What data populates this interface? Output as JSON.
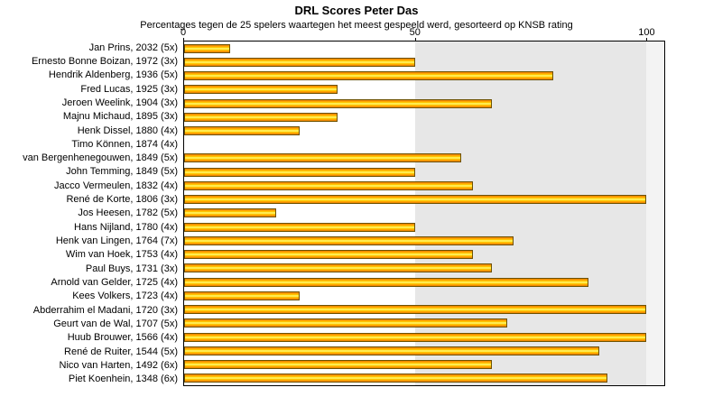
{
  "title": "DRL Scores Peter Das",
  "subtitle": "Percentages tegen de 25 spelers waartegen het meest gespeeld werd, gesorteerd op KNSB rating",
  "chart_data": {
    "type": "bar",
    "orientation": "horizontal",
    "title": "DRL Scores Peter Das",
    "subtitle": "Percentages tegen de 25 spelers waartegen het meest gespeeld werd, gesorteerd op KNSB rating",
    "xlabel": "",
    "ylabel": "",
    "xlim": [
      0,
      104
    ],
    "x_ticks": [
      0,
      50,
      100
    ],
    "shaded_band": [
      50,
      100
    ],
    "grid": false,
    "legend": "none",
    "categories": [
      "Jan Prins, 2032 (5x)",
      "Ernesto Bonne Boizan, 1972 (3x)",
      "Hendrik Aldenberg, 1936 (5x)",
      "Fred Lucas, 1925 (3x)",
      "Jeroen Weelink, 1904 (3x)",
      "Majnu Michaud, 1895 (3x)",
      "Henk Dissel, 1880 (4x)",
      "Timo Können, 1874 (4x)",
      "van Bergenhenegouwen, 1849 (5x)",
      "John Temming, 1849 (5x)",
      "Jacco Vermeulen, 1832 (4x)",
      "René de Korte, 1806 (3x)",
      "Jos Heesen, 1782 (5x)",
      "Hans Nijland, 1780 (4x)",
      "Henk van Lingen, 1764 (7x)",
      "Wim van Hoek, 1753 (4x)",
      "Paul Buys, 1731 (3x)",
      "Arnold van Gelder, 1725 (4x)",
      "Kees Volkers, 1723 (4x)",
      "Abderrahim el Madani, 1720 (3x)",
      "Geurt van de Wal, 1707 (5x)",
      "Huub Brouwer, 1566 (4x)",
      "René de Ruiter, 1544 (5x)",
      "Nico van Harten, 1492 (6x)",
      "Piet Koenhein, 1348 (6x)"
    ],
    "values": [
      10,
      50,
      80,
      33.3,
      66.7,
      33.3,
      25,
      0,
      60,
      50,
      62.5,
      100,
      20,
      50,
      71.4,
      62.5,
      66.7,
      87.5,
      25,
      100,
      70,
      100,
      90,
      66.7,
      91.7
    ],
    "colors": {
      "bar_edge": "#e87e00",
      "bar_center": "#ffffa6",
      "bar_border": "#6d5200",
      "band_50_100": "#e7e7e7",
      "band_over_100": "#f3f3f3",
      "plot_border": "#000000"
    }
  }
}
